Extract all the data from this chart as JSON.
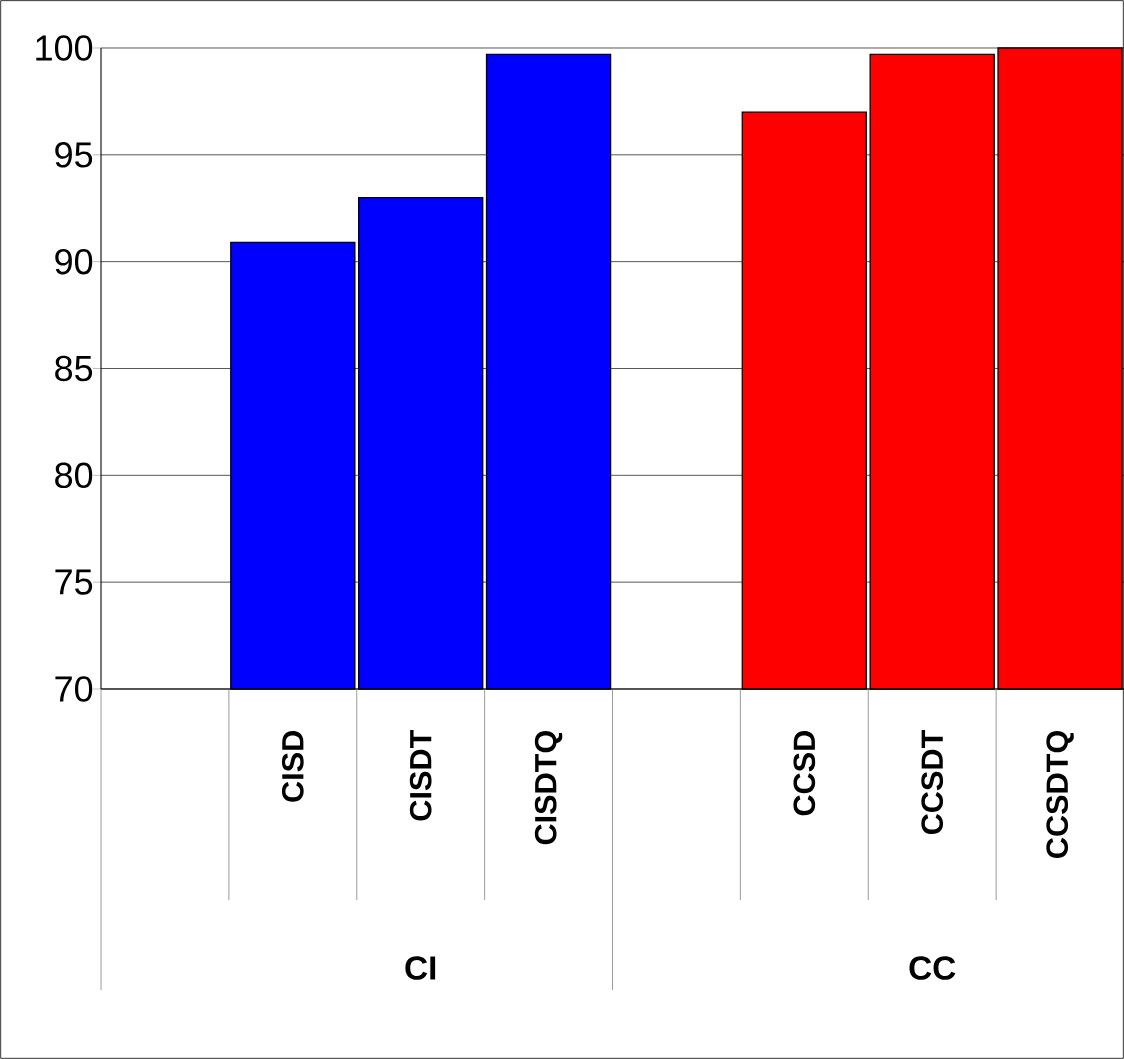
{
  "chart_data": {
    "type": "bar",
    "categories": [
      null,
      "CISD",
      "CISDT",
      "CISDTQ",
      null,
      "CCSD",
      "CCSDT",
      "CCSDTQ"
    ],
    "values": [
      null,
      90.9,
      93.0,
      99.7,
      null,
      97.0,
      99.7,
      100
    ],
    "colors": [
      "#0000ff",
      "#0000ff",
      "#0000ff",
      "#0000ff",
      "#ff0000",
      "#ff0000",
      "#ff0000",
      "#ff0000"
    ],
    "ylim": [
      70,
      100
    ],
    "yticks": [
      70,
      75,
      80,
      85,
      90,
      95,
      100
    ],
    "grid": "y",
    "annotations": [
      "CI",
      "CC"
    ]
  }
}
